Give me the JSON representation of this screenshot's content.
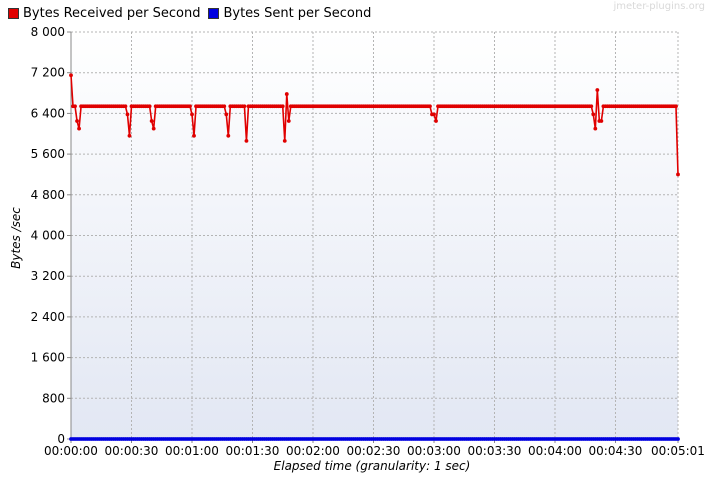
{
  "watermark": "jmeter-plugins.org",
  "chart_data": {
    "type": "line",
    "title": "",
    "xlabel": "Elapsed time (granularity: 1 sec)",
    "ylabel": "Bytes /sec",
    "ylim": [
      0,
      8000
    ],
    "xlim": [
      0,
      301
    ],
    "grid": true,
    "legend_position": "top-left",
    "y_ticks": [
      {
        "value": 0,
        "label": "0"
      },
      {
        "value": 800,
        "label": "800"
      },
      {
        "value": 1600,
        "label": "1 600"
      },
      {
        "value": 2400,
        "label": "2 400"
      },
      {
        "value": 3200,
        "label": "3 200"
      },
      {
        "value": 4000,
        "label": "4 000"
      },
      {
        "value": 4800,
        "label": "4 800"
      },
      {
        "value": 5600,
        "label": "5 600"
      },
      {
        "value": 6400,
        "label": "6 400"
      },
      {
        "value": 7200,
        "label": "7 200"
      },
      {
        "value": 8000,
        "label": "8 000"
      }
    ],
    "x_ticks": [
      {
        "value": 0,
        "label": "00:00:00"
      },
      {
        "value": 30,
        "label": "00:00:30"
      },
      {
        "value": 60,
        "label": "00:01:00"
      },
      {
        "value": 90,
        "label": "00:01:30"
      },
      {
        "value": 120,
        "label": "00:02:00"
      },
      {
        "value": 150,
        "label": "00:02:30"
      },
      {
        "value": 180,
        "label": "00:03:00"
      },
      {
        "value": 210,
        "label": "00:03:30"
      },
      {
        "value": 240,
        "label": "00:04:00"
      },
      {
        "value": 270,
        "label": "00:04:30"
      },
      {
        "value": 301,
        "label": "00:05:01"
      }
    ],
    "series": [
      {
        "name": "Bytes Received per Second",
        "color": "#e00000",
        "baseline": 6540,
        "x_start": 0,
        "x_end": 301,
        "overrides": [
          [
            0,
            7150
          ],
          [
            1,
            6540
          ],
          [
            2,
            6540
          ],
          [
            3,
            6250
          ],
          [
            4,
            6100
          ],
          [
            5,
            6540
          ],
          [
            27,
            6540
          ],
          [
            28,
            6380
          ],
          [
            29,
            5960
          ],
          [
            30,
            6540
          ],
          [
            39,
            6540
          ],
          [
            40,
            6250
          ],
          [
            41,
            6100
          ],
          [
            42,
            6540
          ],
          [
            59,
            6540
          ],
          [
            60,
            6380
          ],
          [
            61,
            5960
          ],
          [
            62,
            6540
          ],
          [
            76,
            6540
          ],
          [
            77,
            6380
          ],
          [
            78,
            5960
          ],
          [
            79,
            6540
          ],
          [
            86,
            6540
          ],
          [
            87,
            5860
          ],
          [
            88,
            6540
          ],
          [
            105,
            6540
          ],
          [
            106,
            5860
          ],
          [
            107,
            6780
          ],
          [
            108,
            6250
          ],
          [
            109,
            6540
          ],
          [
            178,
            6540
          ],
          [
            179,
            6380
          ],
          [
            180,
            6380
          ],
          [
            181,
            6250
          ],
          [
            182,
            6540
          ],
          [
            258,
            6540
          ],
          [
            259,
            6380
          ],
          [
            260,
            6100
          ],
          [
            261,
            6860
          ],
          [
            262,
            6250
          ],
          [
            263,
            6250
          ],
          [
            264,
            6540
          ],
          [
            300,
            6540
          ],
          [
            301,
            5200
          ]
        ]
      },
      {
        "name": "Bytes Sent per Second",
        "color": "#0000e0",
        "baseline": 0,
        "x_start": 0,
        "x_end": 301,
        "overrides": []
      }
    ]
  }
}
